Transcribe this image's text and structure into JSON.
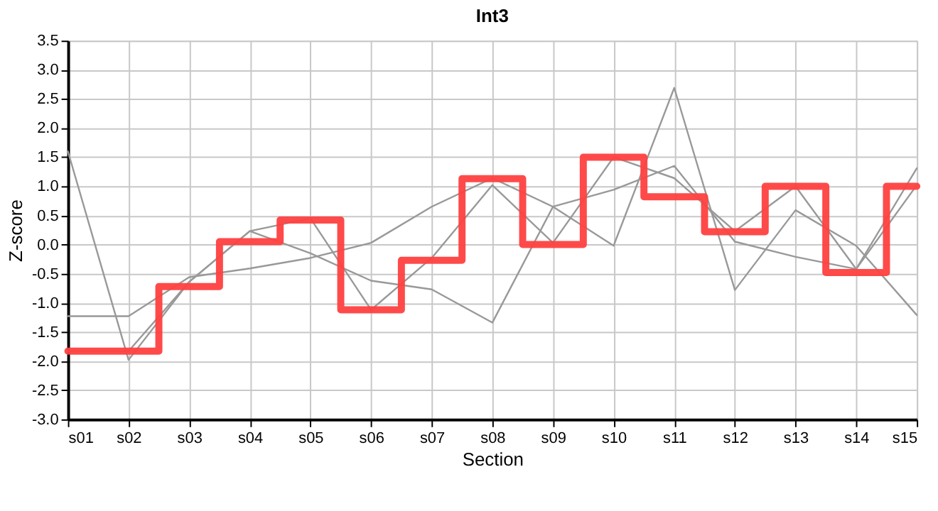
{
  "chart_data": {
    "type": "line",
    "title": "Int3",
    "xlabel": "Section",
    "ylabel": "Z-score",
    "categories": [
      "s01",
      "s02",
      "s03",
      "s04",
      "s05",
      "s06",
      "s07",
      "s08",
      "s09",
      "s10",
      "s11",
      "s12",
      "s13",
      "s14",
      "s15"
    ],
    "series": [
      {
        "color": "#999999",
        "values": [
          1.6,
          -1.98,
          -0.64,
          0.23,
          0.45,
          -1.12,
          -0.23,
          1.02,
          0.03,
          1.5,
          1.14,
          0.23,
          1.0,
          -0.42,
          1.02
        ]
      },
      {
        "color": "#999999",
        "values": [
          -1.83,
          -1.83,
          -0.64,
          0.23,
          -0.15,
          -0.62,
          -0.77,
          -1.34,
          0.65,
          -0.02,
          2.69,
          -0.78,
          0.59,
          -0.02,
          -1.21
        ]
      },
      {
        "color": "#999999",
        "values": [
          -1.23,
          -1.23,
          -0.56,
          -0.41,
          -0.23,
          0.03,
          0.65,
          1.14,
          0.65,
          0.94,
          1.35,
          0.05,
          -0.21,
          -0.42,
          1.31
        ]
      },
      {
        "type": "step",
        "color": "#ff4040",
        "values": [
          -1.83,
          -1.83,
          -0.72,
          0.05,
          0.42,
          -1.12,
          -0.27,
          1.13,
          0.0,
          1.5,
          0.82,
          0.22,
          1.0,
          -0.48,
          1.0
        ]
      }
    ],
    "ylim": [
      -3.0,
      3.5
    ],
    "yticks": [
      {
        "value": -3.0,
        "label": "-3.0"
      },
      {
        "value": -2.5,
        "label": "-2.5"
      },
      {
        "value": -2.0,
        "label": "-2.0"
      },
      {
        "value": -1.5,
        "label": "-1.5"
      },
      {
        "value": -1.0,
        "label": "-1.0"
      },
      {
        "value": -0.5,
        "label": "-0.5"
      },
      {
        "value": 0.0,
        "label": "0.0"
      },
      {
        "value": 0.5,
        "label": "0.5"
      },
      {
        "value": 1.0,
        "label": "1.0"
      },
      {
        "value": 1.5,
        "label": "1.5"
      },
      {
        "value": 2.0,
        "label": "2.0"
      },
      {
        "value": 2.5,
        "label": "2.5"
      },
      {
        "value": 3.0,
        "label": "3.0"
      },
      {
        "value": 3.5,
        "label": "3.5"
      }
    ],
    "grid": true,
    "marker": "none"
  }
}
